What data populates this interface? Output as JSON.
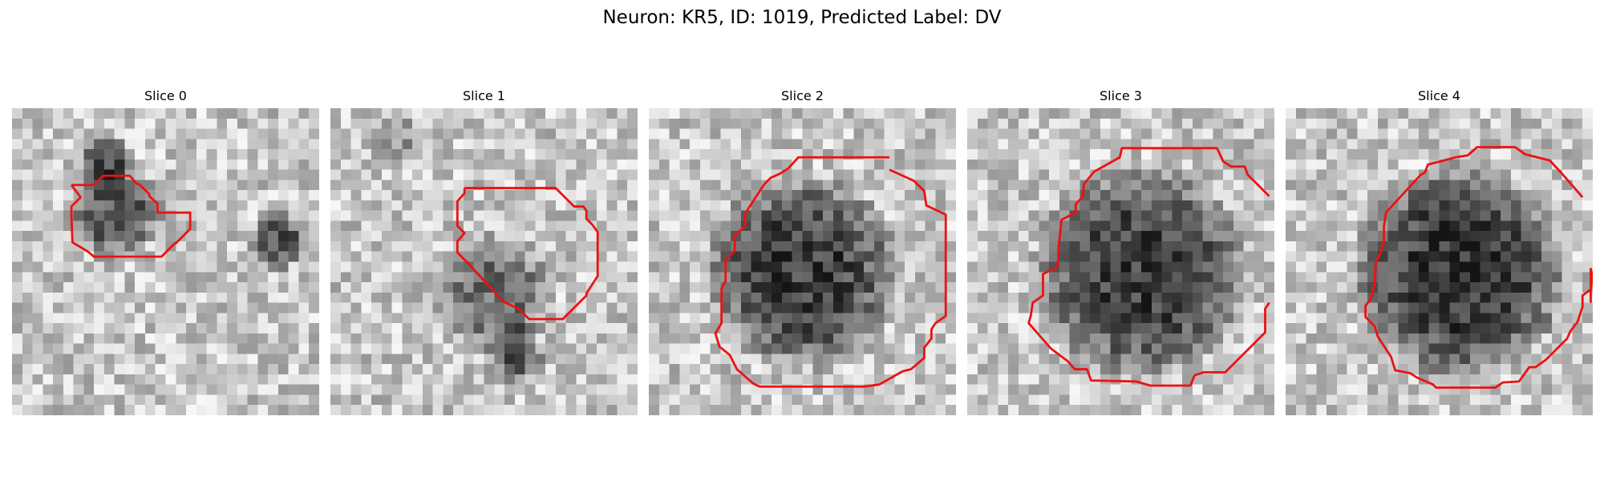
{
  "figure": {
    "title": "Neuron: KR5, ID: 1019, Predicted Label: DV"
  },
  "colors": {
    "contour": "#ee1111",
    "background": "#ffffff"
  },
  "panels": [
    {
      "title": "Slice 0",
      "cell": "dark"
    },
    {
      "title": "Slice 1",
      "cell": "dark"
    },
    {
      "title": "Slice 2",
      "cell": "dark"
    },
    {
      "title": "Slice 3",
      "cell": "dark"
    },
    {
      "title": "Slice 4",
      "cell": "dark"
    }
  ]
}
